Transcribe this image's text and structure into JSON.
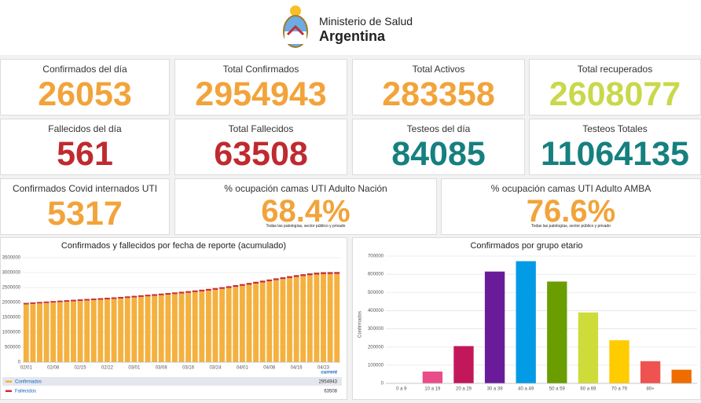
{
  "header": {
    "line1": "Ministerio de Salud",
    "line2": "Argentina"
  },
  "cards": [
    {
      "label": "Confirmados del día",
      "value": 26053,
      "color": "#f2a33a"
    },
    {
      "label": "Total Confirmados",
      "value": 2954943,
      "color": "#f2a33a"
    },
    {
      "label": "Total Activos",
      "value": 283358,
      "color": "#f2a33a"
    },
    {
      "label": "Total recuperados",
      "value": 2608077,
      "color": "#c9d84b"
    },
    {
      "label": "Fallecidos del día",
      "value": 561,
      "color": "#bf2a2f"
    },
    {
      "label": "Total Fallecidos",
      "value": 63508,
      "color": "#bf2a2f"
    },
    {
      "label": "Testeos del día",
      "value": 84085,
      "color": "#15807f"
    },
    {
      "label": "Testeos Totales",
      "value": 11064135,
      "color": "#15807f"
    },
    {
      "label": "Confirmados Covid internados UTI",
      "value": 5317,
      "color": "#f2a33a"
    },
    {
      "label": "% ocupación camas UTI Adulto Nación",
      "value": "68.4%",
      "color": "#f2a33a",
      "note": "Todas las patologías, sector público y privado"
    },
    {
      "label": "% ocupación camas UTI Adulto AMBA",
      "value": "76.6%",
      "color": "#f2a33a",
      "note": "Todas las patologías, sector público y privado"
    }
  ],
  "chart_data": [
    {
      "type": "bar",
      "title": "Confirmados y fallecidos por fecha de reporte (acumulado)",
      "stacked": true,
      "legend_header": "current",
      "categories": [
        "02/01",
        null,
        null,
        null,
        "02/08",
        null,
        null,
        null,
        "02/15",
        null,
        null,
        null,
        "02/22",
        null,
        null,
        null,
        "03/01",
        null,
        null,
        null,
        "03/08",
        null,
        null,
        null,
        "03/16",
        null,
        null,
        null,
        "03/24",
        null,
        null,
        null,
        "04/01",
        null,
        null,
        null,
        "04/08",
        null,
        null,
        null,
        "04/16",
        null,
        null,
        null,
        "04/23",
        null,
        null
      ],
      "series": [
        {
          "name": "Confirmados",
          "color": "#f4b13f",
          "values": [
            1935000,
            1951000,
            1967000,
            1982000,
            1997000,
            2011000,
            2025000,
            2039000,
            2052000,
            2065000,
            2078000,
            2091000,
            2104000,
            2118000,
            2132000,
            2150000,
            2168000,
            2186000,
            2204000,
            2222000,
            2241000,
            2260000,
            2280000,
            2301000,
            2323000,
            2346000,
            2370000,
            2396000,
            2424000,
            2454000,
            2486000,
            2521000,
            2557000,
            2594000,
            2632000,
            2670000,
            2708000,
            2746000,
            2783000,
            2818000,
            2852000,
            2884000,
            2912000,
            2935000,
            2950000,
            2952000,
            2954943
          ]
        },
        {
          "name": "Fallecidos",
          "color": "#c62f37",
          "values": [
            48200,
            48530,
            48860,
            49190,
            49520,
            49850,
            50180,
            50510,
            50840,
            51170,
            51500,
            51830,
            52160,
            52490,
            52820,
            53150,
            53480,
            53810,
            54140,
            54470,
            54800,
            55130,
            55460,
            55790,
            56120,
            56450,
            56780,
            57110,
            57440,
            57770,
            58100,
            58430,
            58760,
            59090,
            59420,
            59750,
            60080,
            60410,
            60740,
            61070,
            61400,
            61730,
            62060,
            62390,
            62720,
            63050,
            63508
          ]
        }
      ],
      "ylim": [
        0,
        3500000
      ],
      "yticks": [
        0,
        500000,
        1000000,
        1500000,
        2000000,
        2500000,
        3000000,
        3500000
      ],
      "grid": true
    },
    {
      "type": "bar",
      "title": "Confirmados por grupo etario",
      "ylabel": "Confirmados",
      "categories": [
        "0 a 9",
        "10 a 19",
        "20 a 29",
        "30 a 39",
        "40 a 49",
        "50 a 59",
        "60 a 69",
        "70 a 79",
        "80+",
        null
      ],
      "values": [
        null,
        65000,
        205000,
        615000,
        672000,
        560000,
        390000,
        237000,
        122000,
        75000
      ],
      "colors": [
        "#e84d8a",
        "#e84d8a",
        "#c2185b",
        "#6a1b9a",
        "#039be5",
        "#6a9e00",
        "#cddc39",
        "#ffcc00",
        "#ef5350",
        "#ef6c00"
      ],
      "ylim": [
        0,
        700000
      ],
      "yticks": [
        0,
        100000,
        200000,
        300000,
        400000,
        500000,
        600000,
        700000
      ],
      "grid": true
    }
  ]
}
